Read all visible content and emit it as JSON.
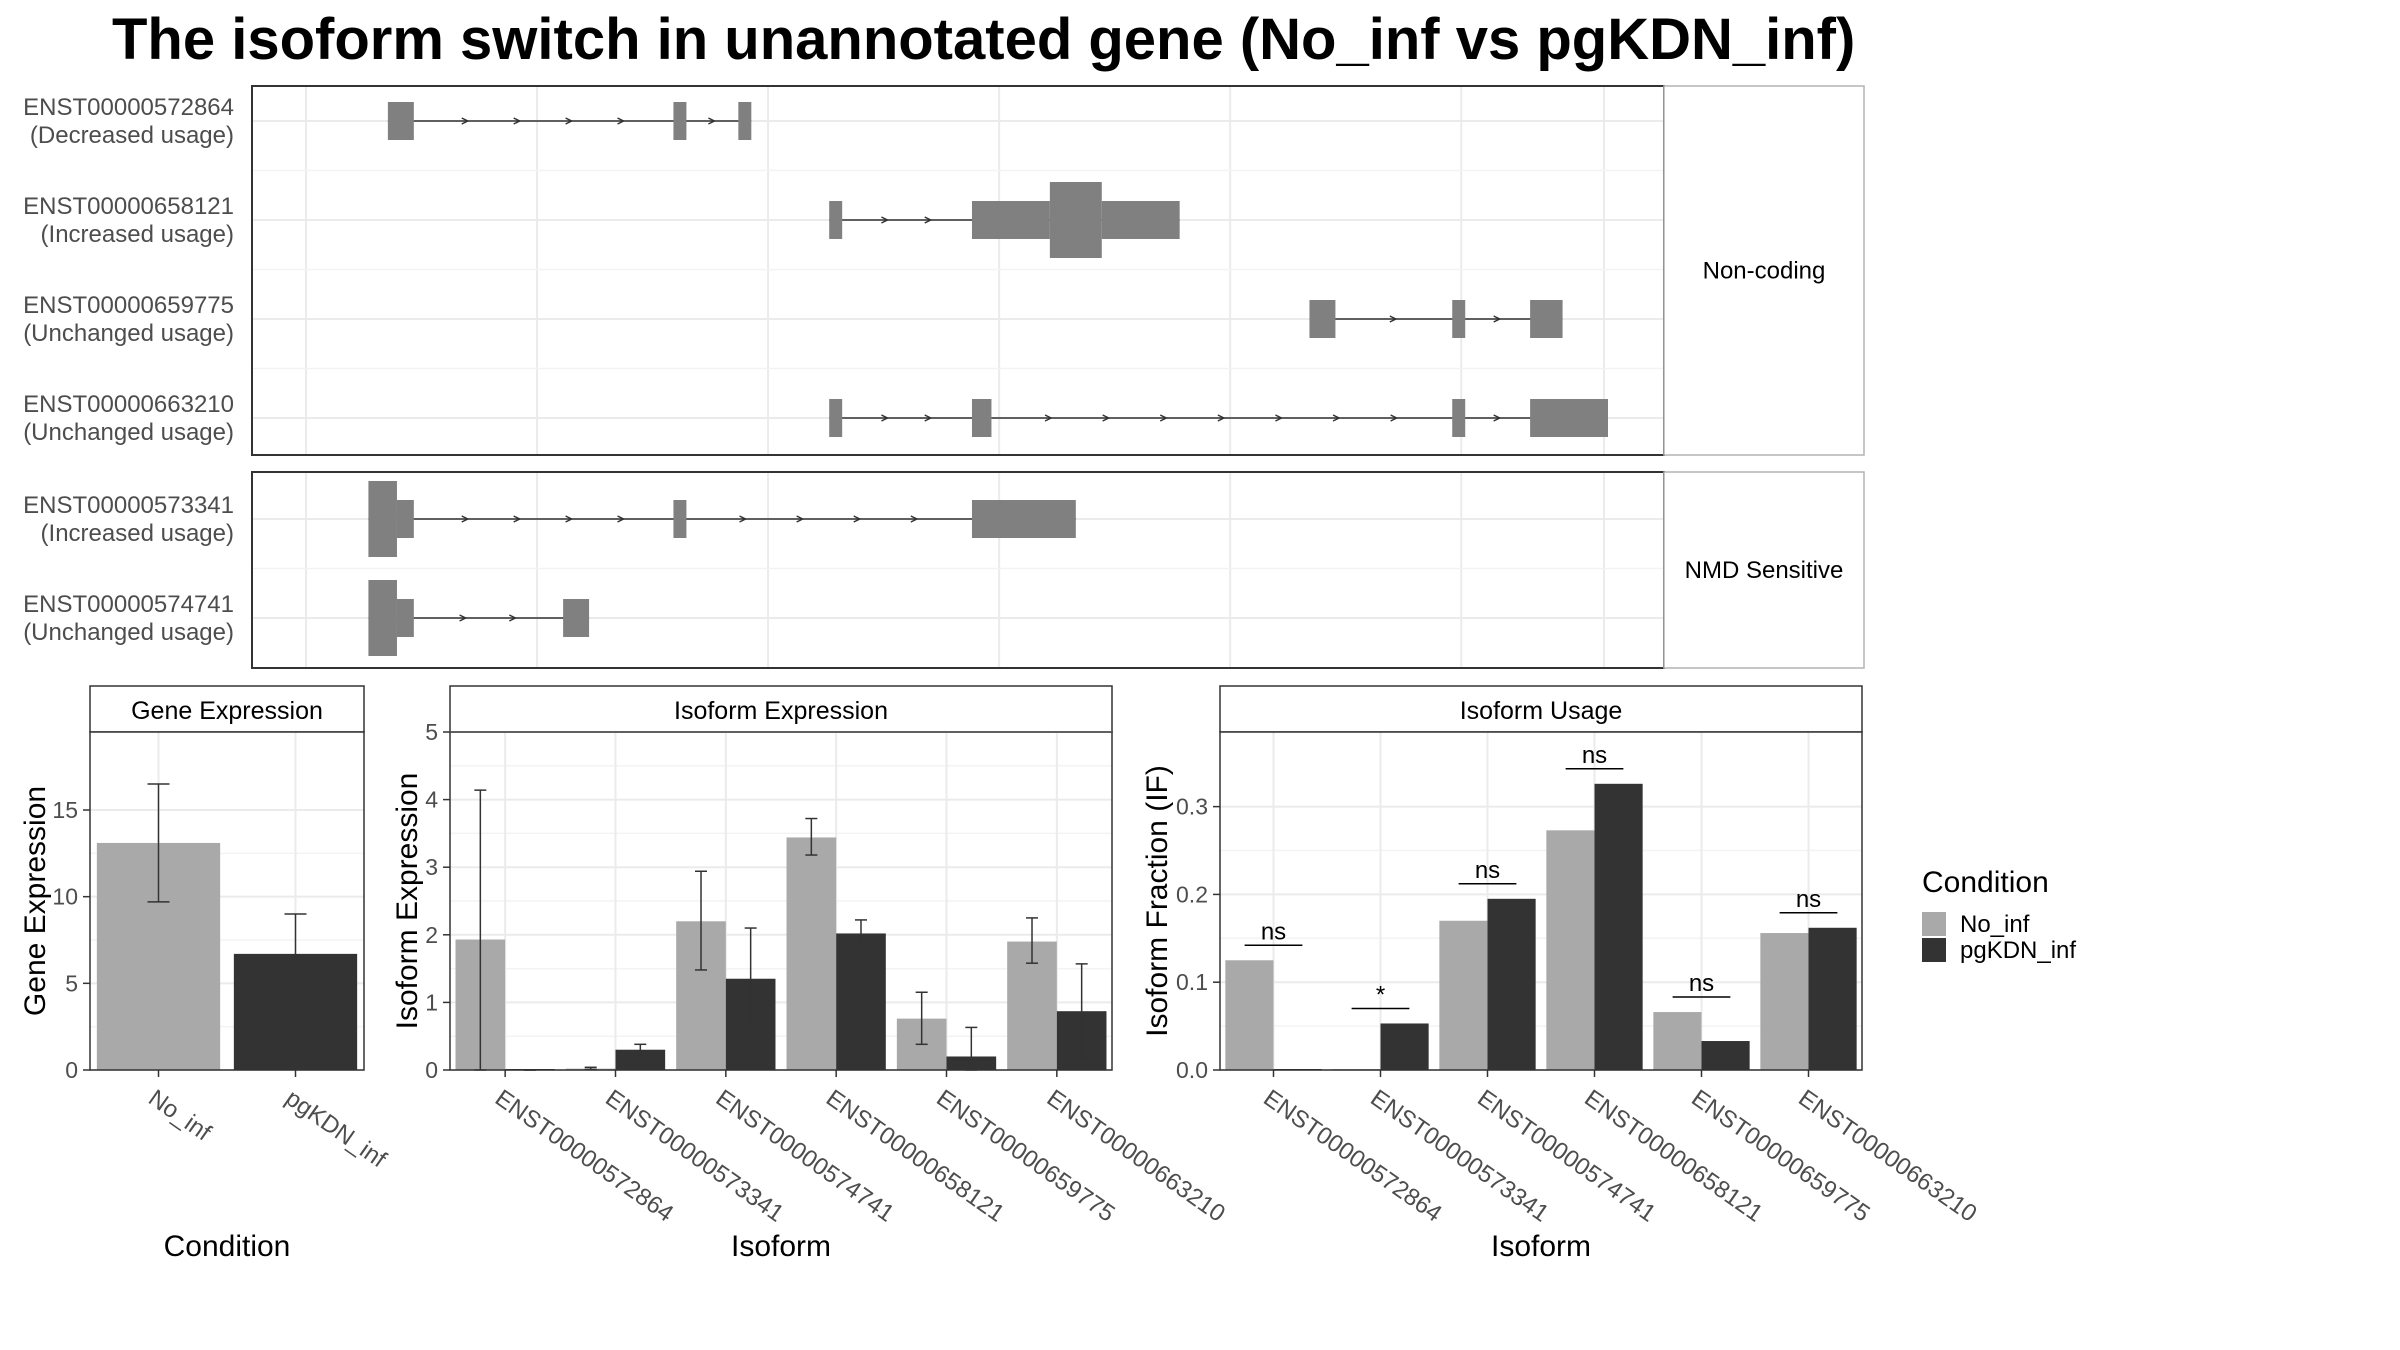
{
  "title": "The isoform switch in unannotated gene (No_inf vs pgKDN_inf)",
  "colors": {
    "no_inf": "#a9a9a9",
    "pgkdn_inf": "#333333",
    "feature": "#808080",
    "grid": "#ebebeb",
    "strip_bg": "#ffffff",
    "border": "#333333"
  },
  "structure": {
    "facets": [
      {
        "label": "Non-coding",
        "transcripts": [
          {
            "name": "ENST00000572864",
            "usage": "(Decreased usage)",
            "cds": [],
            "utr": [
              [
                0.06,
                0.08
              ],
              [
                0.28,
                0.29
              ],
              [
                0.33,
                0.34
              ]
            ]
          },
          {
            "name": "ENST00000658121",
            "usage": "(Increased usage)",
            "cds": [
              [
                0.57,
                0.61
              ]
            ],
            "utr": [
              [
                0.4,
                0.41
              ],
              [
                0.51,
                0.57
              ],
              [
                0.61,
                0.67
              ]
            ]
          },
          {
            "name": "ENST00000659775",
            "usage": "(Unchanged usage)",
            "cds": [],
            "utr": [
              [
                0.77,
                0.79
              ],
              [
                0.88,
                0.89
              ],
              [
                0.94,
                0.965
              ]
            ]
          },
          {
            "name": "ENST00000663210",
            "usage": "(Unchanged usage)",
            "cds": [],
            "utr": [
              [
                0.4,
                0.41
              ],
              [
                0.51,
                0.525
              ],
              [
                0.88,
                0.89
              ],
              [
                0.94,
                1.0
              ]
            ]
          }
        ]
      },
      {
        "label": "NMD Sensitive",
        "transcripts": [
          {
            "name": "ENST00000573341",
            "usage": "(Increased usage)",
            "cds": [
              [
                0.045,
                0.067
              ]
            ],
            "utr": [
              [
                0.067,
                0.08
              ],
              [
                0.28,
                0.29
              ],
              [
                0.51,
                0.59
              ]
            ]
          },
          {
            "name": "ENST00000574741",
            "usage": "(Unchanged usage)",
            "cds": [
              [
                0.045,
                0.067
              ]
            ],
            "utr": [
              [
                0.067,
                0.08
              ],
              [
                0.195,
                0.215
              ]
            ]
          }
        ]
      }
    ]
  },
  "chart_data": [
    {
      "type": "bar",
      "title": "Gene Expression",
      "xlabel": "Condition",
      "ylabel": "Gene Expression",
      "categories": [
        "No_inf",
        "pgKDN_inf"
      ],
      "values": [
        13.1,
        6.7
      ],
      "error_low": [
        9.7,
        4.4
      ],
      "error_high": [
        16.5,
        9.0
      ],
      "ylim": [
        0,
        19.5
      ],
      "yticks": [
        0,
        5,
        10,
        15
      ],
      "ytick_labels": [
        "0",
        "5",
        "10",
        "15"
      ]
    },
    {
      "type": "bar",
      "title": "Isoform Expression",
      "xlabel": "Isoform",
      "ylabel": "Isoform Expression",
      "categories": [
        "ENST00000572864",
        "ENST00000573341",
        "ENST00000574741",
        "ENST00000658121",
        "ENST00000659775",
        "ENST00000663210"
      ],
      "series": [
        {
          "name": "No_inf",
          "values": [
            1.93,
            0.02,
            2.2,
            3.44,
            0.76,
            1.9
          ],
          "error_low": [
            0,
            0.01,
            1.48,
            3.18,
            0.38,
            1.58
          ],
          "error_high": [
            4.14,
            0.04,
            2.94,
            3.72,
            1.15,
            2.25
          ]
        },
        {
          "name": "pgKDN_inf",
          "values": [
            0.0,
            0.3,
            1.35,
            2.02,
            0.2,
            0.87
          ],
          "error_low": [
            0,
            0.22,
            0.6,
            1.82,
            0,
            0.18
          ],
          "error_high": [
            0,
            0.38,
            2.1,
            2.22,
            0.63,
            1.57
          ]
        }
      ],
      "ylim": [
        0,
        5
      ],
      "yticks": [
        0,
        1,
        2,
        3,
        4,
        5
      ],
      "ytick_labels": [
        "0",
        "1",
        "2",
        "3",
        "4",
        "5"
      ]
    },
    {
      "type": "bar",
      "title": "Isoform Usage",
      "xlabel": "Isoform",
      "ylabel": "Isoform Fraction (IF)",
      "categories": [
        "ENST00000572864",
        "ENST00000573341",
        "ENST00000574741",
        "ENST00000658121",
        "ENST00000659775",
        "ENST00000663210"
      ],
      "series": [
        {
          "name": "No_inf",
          "values": [
            0.125,
            0.0,
            0.17,
            0.273,
            0.066,
            0.156
          ]
        },
        {
          "name": "pgKDN_inf",
          "values": [
            0.0,
            0.053,
            0.195,
            0.326,
            0.033,
            0.162
          ]
        }
      ],
      "significance": [
        "ns",
        "*",
        "ns",
        "ns",
        "ns",
        "ns"
      ],
      "ylim": [
        0,
        0.385
      ],
      "yticks": [
        0,
        0.1,
        0.2,
        0.3
      ],
      "ytick_labels": [
        "0.0",
        "0.1",
        "0.2",
        "0.3"
      ]
    }
  ],
  "legend": {
    "title": "Condition",
    "items": [
      "No_inf",
      "pgKDN_inf"
    ]
  }
}
